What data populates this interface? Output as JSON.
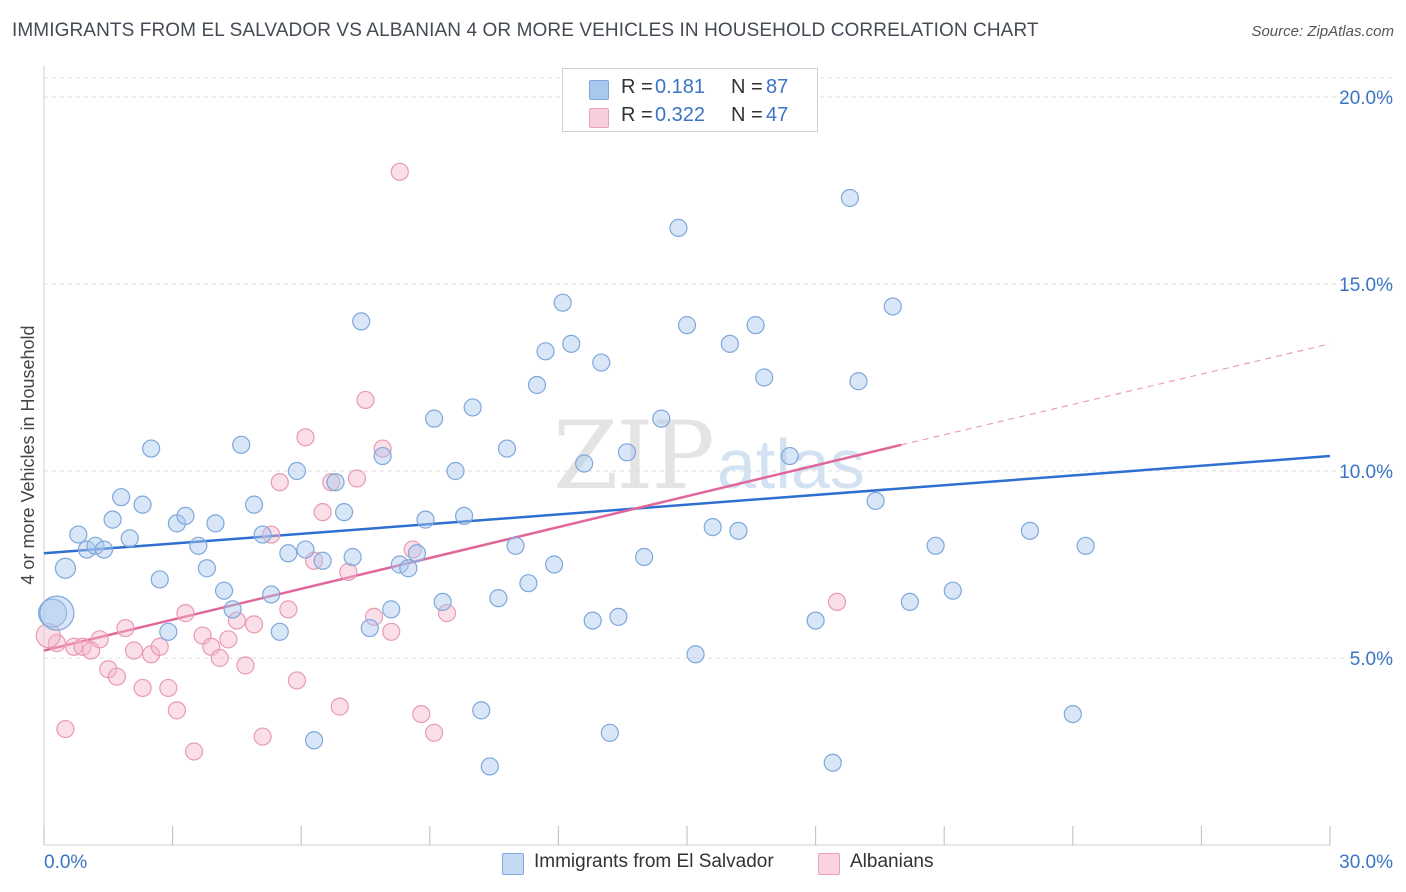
{
  "title": "IMMIGRANTS FROM EL SALVADOR VS ALBANIAN 4 OR MORE VEHICLES IN HOUSEHOLD CORRELATION CHART",
  "source": "Source: ZipAtlas.com",
  "watermark": {
    "zip": "ZIP",
    "atlas": "atlas"
  },
  "legend_top": [
    {
      "r_label": "R =",
      "r_value": "0.181",
      "n_label": "N =",
      "n_value": "87",
      "color": "#a9c8ee"
    },
    {
      "r_label": "R =",
      "r_value": "0.322",
      "n_label": "N =",
      "n_value": "47",
      "color": "#f5b8cb"
    }
  ],
  "legend_bottom": [
    {
      "label": "Immigrants from El Salvador",
      "color": "#a9c8ee"
    },
    {
      "label": "Albanians",
      "color": "#f5b8cb"
    }
  ],
  "chart_data": {
    "type": "scatter",
    "title": "IMMIGRANTS FROM EL SALVADOR VS ALBANIAN 4 OR MORE VEHICLES IN HOUSEHOLD CORRELATION CHART",
    "xlabel": "",
    "ylabel": "4 or more Vehicles in Household",
    "xlim": [
      0,
      30
    ],
    "ylim": [
      0,
      20
    ],
    "x_tick_labels": [
      "0.0%",
      "30.0%"
    ],
    "y_ticks": [
      5,
      10,
      15,
      20
    ],
    "y_tick_labels": [
      "5.0%",
      "10.0%",
      "15.0%",
      "20.0%"
    ],
    "grid": true,
    "legend_position": "top-center",
    "colors": {
      "series1": "#a9c8ee",
      "series1_line": "#2f6fd0",
      "series2": "#f5b8cb",
      "series2_line": "#e0679a"
    },
    "series": [
      {
        "name": "Immigrants from El Salvador",
        "trend": {
          "x": [
            0,
            30
          ],
          "y": [
            7.8,
            10.4
          ]
        },
        "points": [
          [
            0.2,
            6.2
          ],
          [
            0.5,
            7.4
          ],
          [
            0.8,
            8.3
          ],
          [
            1.0,
            7.9
          ],
          [
            1.2,
            8.0
          ],
          [
            1.4,
            7.9
          ],
          [
            1.6,
            8.7
          ],
          [
            1.8,
            9.3
          ],
          [
            2.0,
            8.2
          ],
          [
            2.3,
            9.1
          ],
          [
            2.5,
            10.6
          ],
          [
            2.7,
            7.1
          ],
          [
            2.9,
            5.7
          ],
          [
            3.1,
            8.6
          ],
          [
            3.3,
            8.8
          ],
          [
            3.6,
            8.0
          ],
          [
            3.8,
            7.4
          ],
          [
            4.0,
            8.6
          ],
          [
            4.2,
            6.8
          ],
          [
            4.4,
            6.3
          ],
          [
            4.6,
            10.7
          ],
          [
            4.9,
            9.1
          ],
          [
            5.1,
            8.3
          ],
          [
            5.3,
            6.7
          ],
          [
            5.5,
            5.7
          ],
          [
            5.7,
            7.8
          ],
          [
            5.9,
            10.0
          ],
          [
            6.1,
            7.9
          ],
          [
            6.3,
            2.8
          ],
          [
            6.5,
            7.6
          ],
          [
            6.8,
            9.7
          ],
          [
            7.0,
            8.9
          ],
          [
            7.2,
            7.7
          ],
          [
            7.4,
            14.0
          ],
          [
            7.6,
            5.8
          ],
          [
            7.9,
            10.4
          ],
          [
            8.1,
            6.3
          ],
          [
            8.3,
            7.5
          ],
          [
            8.5,
            7.4
          ],
          [
            8.7,
            7.8
          ],
          [
            8.9,
            8.7
          ],
          [
            9.1,
            11.4
          ],
          [
            9.3,
            6.5
          ],
          [
            9.6,
            10.0
          ],
          [
            9.8,
            8.8
          ],
          [
            10.0,
            11.7
          ],
          [
            10.2,
            3.6
          ],
          [
            10.4,
            2.1
          ],
          [
            10.6,
            6.6
          ],
          [
            10.8,
            10.6
          ],
          [
            11.0,
            8.0
          ],
          [
            11.3,
            7.0
          ],
          [
            11.5,
            12.3
          ],
          [
            11.7,
            13.2
          ],
          [
            11.9,
            7.5
          ],
          [
            12.1,
            14.5
          ],
          [
            12.3,
            13.4
          ],
          [
            12.6,
            10.2
          ],
          [
            12.8,
            6.0
          ],
          [
            13.0,
            12.9
          ],
          [
            13.2,
            3.0
          ],
          [
            13.4,
            6.1
          ],
          [
            13.6,
            10.5
          ],
          [
            14.0,
            7.7
          ],
          [
            14.4,
            11.4
          ],
          [
            14.8,
            16.5
          ],
          [
            15.0,
            13.9
          ],
          [
            15.2,
            5.1
          ],
          [
            15.6,
            8.5
          ],
          [
            16.0,
            13.4
          ],
          [
            16.2,
            8.4
          ],
          [
            16.6,
            13.9
          ],
          [
            16.8,
            12.5
          ],
          [
            17.4,
            10.4
          ],
          [
            18.0,
            6.0
          ],
          [
            18.4,
            2.2
          ],
          [
            18.8,
            17.3
          ],
          [
            19.0,
            12.4
          ],
          [
            19.4,
            9.2
          ],
          [
            19.8,
            14.4
          ],
          [
            20.2,
            6.5
          ],
          [
            20.8,
            8.0
          ],
          [
            21.2,
            6.8
          ],
          [
            23.0,
            8.4
          ],
          [
            24.0,
            3.5
          ],
          [
            24.3,
            8.0
          ],
          [
            0.3,
            6.2
          ]
        ],
        "point_sizes": "large-first"
      },
      {
        "name": "Albanians",
        "trend": {
          "x": [
            0,
            20
          ],
          "y": [
            5.2,
            10.7
          ]
        },
        "trend_extension": {
          "x": [
            20,
            30
          ],
          "y": [
            10.7,
            13.4
          ]
        },
        "points": [
          [
            0.3,
            5.4
          ],
          [
            0.5,
            3.1
          ],
          [
            0.7,
            5.3
          ],
          [
            0.9,
            5.3
          ],
          [
            1.1,
            5.2
          ],
          [
            1.3,
            5.5
          ],
          [
            1.5,
            4.7
          ],
          [
            1.7,
            4.5
          ],
          [
            1.9,
            5.8
          ],
          [
            2.1,
            5.2
          ],
          [
            2.3,
            4.2
          ],
          [
            2.5,
            5.1
          ],
          [
            2.7,
            5.3
          ],
          [
            2.9,
            4.2
          ],
          [
            3.1,
            3.6
          ],
          [
            3.3,
            6.2
          ],
          [
            3.5,
            2.5
          ],
          [
            3.7,
            5.6
          ],
          [
            3.9,
            5.3
          ],
          [
            4.1,
            5.0
          ],
          [
            4.3,
            5.5
          ],
          [
            4.5,
            6.0
          ],
          [
            4.7,
            4.8
          ],
          [
            4.9,
            5.9
          ],
          [
            5.1,
            2.9
          ],
          [
            5.3,
            8.3
          ],
          [
            5.5,
            9.7
          ],
          [
            5.7,
            6.3
          ],
          [
            5.9,
            4.4
          ],
          [
            6.1,
            10.9
          ],
          [
            6.3,
            7.6
          ],
          [
            6.5,
            8.9
          ],
          [
            6.7,
            9.7
          ],
          [
            6.9,
            3.7
          ],
          [
            7.1,
            7.3
          ],
          [
            7.3,
            9.8
          ],
          [
            7.5,
            11.9
          ],
          [
            7.7,
            6.1
          ],
          [
            7.9,
            10.6
          ],
          [
            8.1,
            5.7
          ],
          [
            8.3,
            18.0
          ],
          [
            8.6,
            7.9
          ],
          [
            8.8,
            3.5
          ],
          [
            9.1,
            3.0
          ],
          [
            9.4,
            6.2
          ],
          [
            18.5,
            6.5
          ],
          [
            0.1,
            5.6
          ]
        ]
      }
    ]
  }
}
